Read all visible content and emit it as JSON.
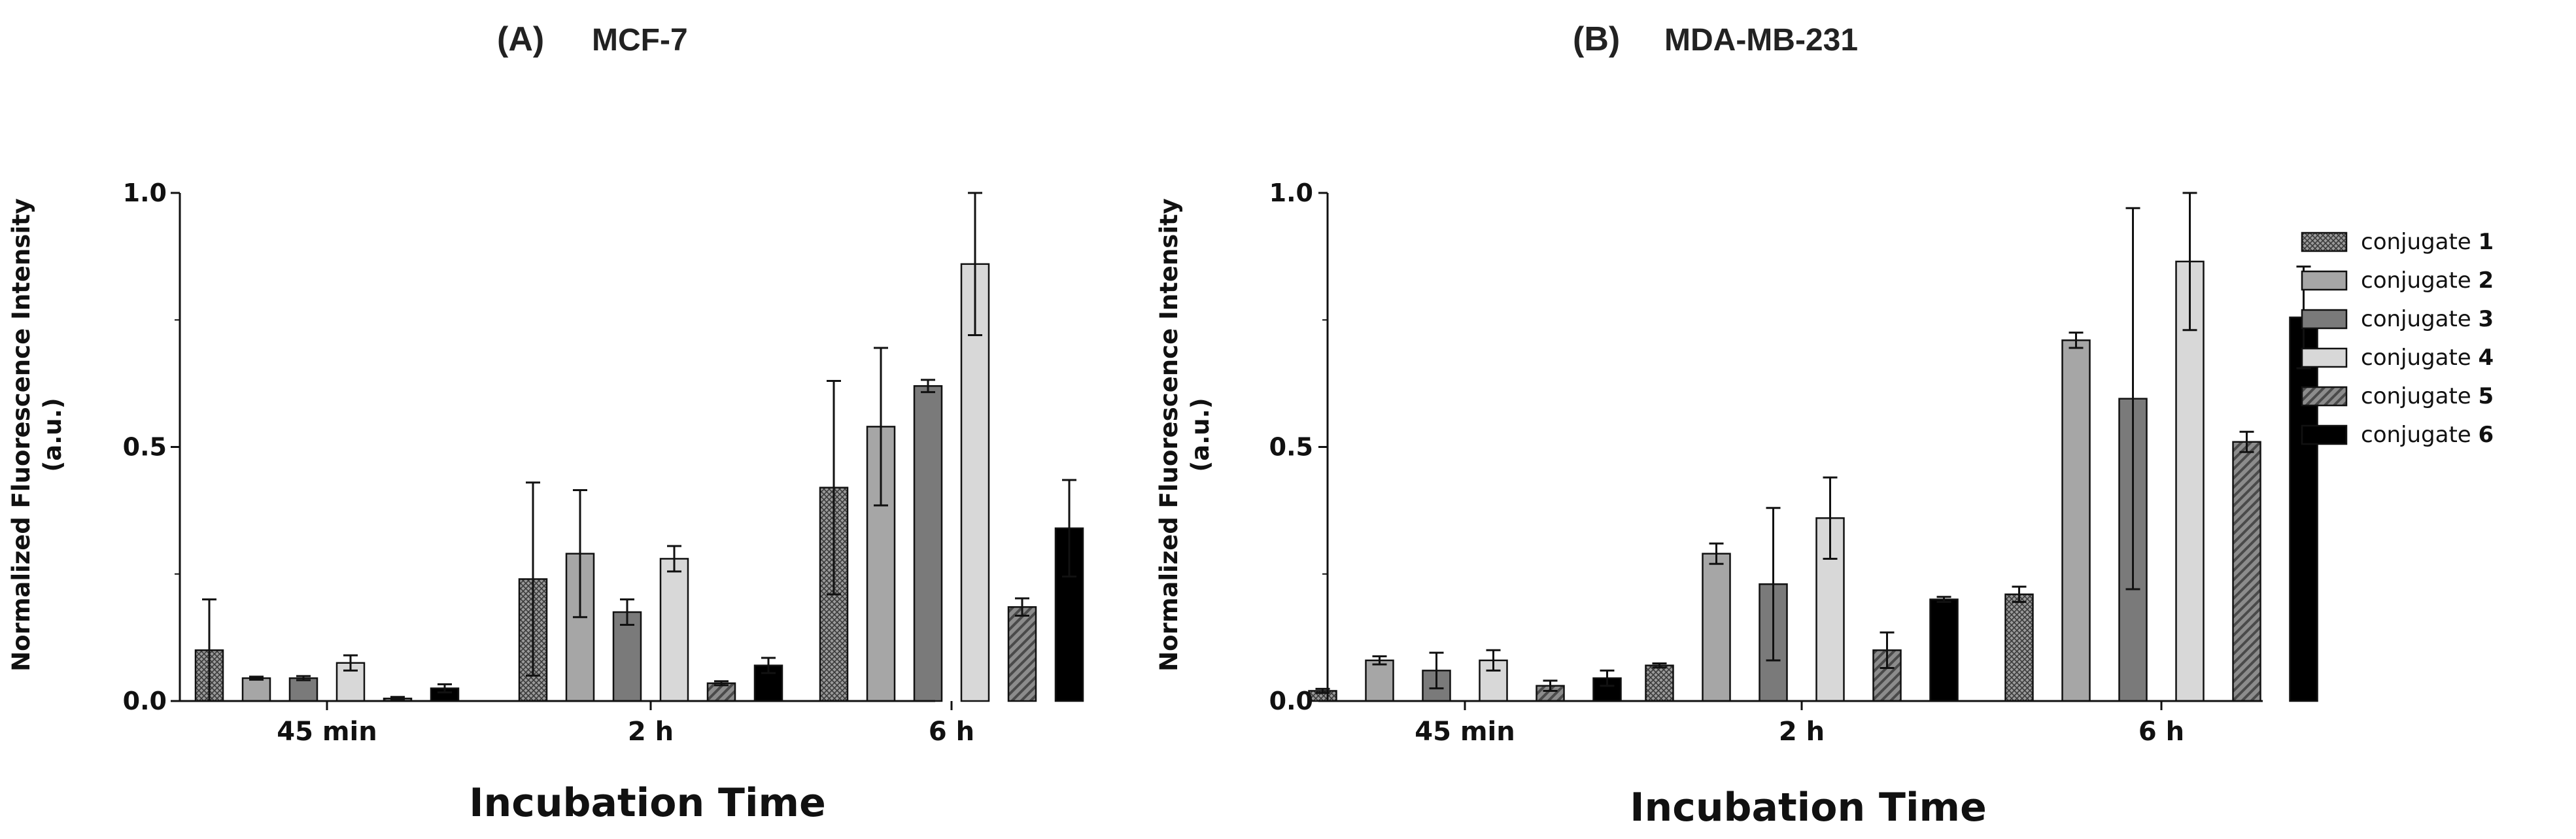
{
  "figure": {
    "legend": {
      "entries": [
        {
          "label": "conjugate",
          "num": "1"
        },
        {
          "label": "conjugate",
          "num": "2"
        },
        {
          "label": "conjugate",
          "num": "3"
        },
        {
          "label": "conjugate",
          "num": "4"
        },
        {
          "label": "conjugate",
          "num": "5"
        },
        {
          "label": "conjugate",
          "num": "6"
        }
      ]
    },
    "series_styles": [
      {
        "fill": "#8a8a8a",
        "pattern": "crosshatch"
      },
      {
        "fill": "#a6a6a6",
        "pattern": "none"
      },
      {
        "fill": "#7a7a7a",
        "pattern": "none"
      },
      {
        "fill": "#d8d8d8",
        "pattern": "none"
      },
      {
        "fill": "#6e6e6e",
        "pattern": "diagonal"
      },
      {
        "fill": "#000000",
        "pattern": "none"
      }
    ]
  },
  "chart_data": [
    {
      "type": "bar",
      "panel_letter": "(A)",
      "title": "MCF-7",
      "ylabel_line1": "Normalized Fluorescence Intensity",
      "ylabel_line2": "(a.u.)",
      "xlabel": "Incubation Time",
      "categories": [
        "45 min",
        "2 h",
        "6 h"
      ],
      "ylim": [
        0,
        1.0
      ],
      "yticks": [
        0.0,
        0.5,
        1.0
      ],
      "ytick_labels": [
        "0.0",
        "0.5",
        "1.0"
      ],
      "series": [
        {
          "name": "conjugate 1",
          "values": [
            0.1,
            0.24,
            0.42
          ],
          "errors": [
            0.1,
            0.19,
            0.21
          ]
        },
        {
          "name": "conjugate 2",
          "values": [
            0.045,
            0.29,
            0.54
          ],
          "errors": [
            0.003,
            0.125,
            0.155
          ]
        },
        {
          "name": "conjugate 3",
          "values": [
            0.045,
            0.175,
            0.62
          ],
          "errors": [
            0.004,
            0.025,
            0.012
          ]
        },
        {
          "name": "conjugate 4",
          "values": [
            0.075,
            0.28,
            0.86
          ],
          "errors": [
            0.015,
            0.025,
            0.14
          ]
        },
        {
          "name": "conjugate 5",
          "values": [
            0.005,
            0.035,
            0.185
          ],
          "errors": [
            0.003,
            0.004,
            0.017
          ]
        },
        {
          "name": "conjugate 6",
          "values": [
            0.025,
            0.07,
            0.34
          ],
          "errors": [
            0.008,
            0.015,
            0.095
          ]
        }
      ]
    },
    {
      "type": "bar",
      "panel_letter": "(B)",
      "title": "MDA-MB-231",
      "ylabel_line1": "Normalized Fluorescence Intensity",
      "ylabel_line2": "(a.u.)",
      "xlabel": "Incubation Time",
      "categories": [
        "45 min",
        "2 h",
        "6 h"
      ],
      "ylim": [
        0,
        1.0
      ],
      "yticks": [
        0.0,
        0.5,
        1.0
      ],
      "ytick_labels": [
        "0.0",
        "0.5",
        "1.0"
      ],
      "series": [
        {
          "name": "conjugate 1",
          "values": [
            0.02,
            0.07,
            0.21
          ],
          "errors": [
            0.004,
            0.004,
            0.015
          ]
        },
        {
          "name": "conjugate 2",
          "values": [
            0.08,
            0.29,
            0.71
          ],
          "errors": [
            0.008,
            0.02,
            0.015
          ]
        },
        {
          "name": "conjugate 3",
          "values": [
            0.06,
            0.23,
            0.595
          ],
          "errors": [
            0.035,
            0.15,
            0.375
          ]
        },
        {
          "name": "conjugate 4",
          "values": [
            0.08,
            0.36,
            0.865
          ],
          "errors": [
            0.02,
            0.08,
            0.135
          ]
        },
        {
          "name": "conjugate 5",
          "values": [
            0.03,
            0.1,
            0.51
          ],
          "errors": [
            0.01,
            0.035,
            0.02
          ]
        },
        {
          "name": "conjugate 6",
          "values": [
            0.045,
            0.2,
            0.755
          ],
          "errors": [
            0.015,
            0.005,
            0.1
          ]
        }
      ]
    }
  ]
}
